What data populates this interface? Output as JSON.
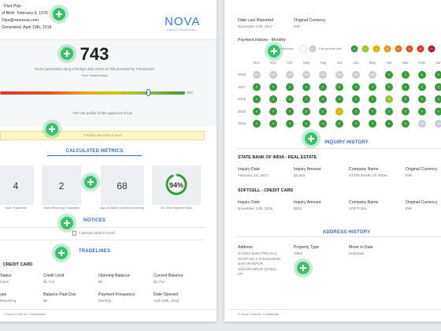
{
  "applicant": {
    "name": ": Diya Pujo",
    "birth": "of Birth: February 6, 1976",
    "email": "Diya@neonova.com",
    "generated": "Generated: April 19th, 2018"
  },
  "logo": {
    "name": "NOVA",
    "tagline": "CREDIT PASSPORT"
  },
  "score": {
    "value": "743",
    "description": "Score generated using a foreign data score of 756 provided by TransUnion",
    "details_link": "More details below",
    "max": "850",
    "risk": "The risk profile of this applicant is low"
  },
  "public_records": "1 Public Records Found",
  "metrics": {
    "title": "CALCULATED METRICS",
    "cards": [
      {
        "value": "4",
        "caption": "Open Tradelines"
      },
      {
        "value": "2",
        "caption": "Open Revolving Tradelines"
      },
      {
        "value": "68",
        "caption": "Age of Oldest Tradeline (months)"
      },
      {
        "value": 94,
        "label": "94%",
        "caption": "On-Time Payment Ratio"
      }
    ]
  },
  "notices": {
    "title": "NOTICES",
    "text": "1 Bureau Notice found"
  },
  "tradelines": {
    "title": "TRADELINES",
    "account": "CREDIT CARD",
    "fields": [
      {
        "label": "Status",
        "value": "Open"
      },
      {
        "label": "Credit Limit",
        "value": "$1,714"
      },
      {
        "label": "Opening Balance",
        "value": "$0"
      },
      {
        "label": "Current Balance",
        "value": "$1,714"
      },
      {
        "label": "ype",
        "value": "Revolving"
      },
      {
        "label": "Balance Past Due",
        "value": "$0"
      },
      {
        "label": "Payment Frequency",
        "value": "Monthly"
      },
      {
        "label": "Date Opened",
        "value": "April 20th, 2013"
      }
    ]
  },
  "footer": "© Nova Credit Inc. Confidential",
  "report": {
    "date_label": "Date Last Reported",
    "date": "November 17th, 2017",
    "currency_label": "Original Currency",
    "currency": "INR"
  },
  "payment_history": {
    "title": "Payment History - Monthly",
    "legend": {
      "unknown": {
        "label": "Unknown",
        "color": "#ffffff"
      },
      "na": {
        "label": "N/A",
        "color": "#c9ccd1"
      },
      "late": "Pay periods late",
      "levels": [
        {
          "label": "0",
          "color": "#3b9a41"
        },
        {
          "label": "1",
          "color": "#9cc23a"
        },
        {
          "label": "2",
          "color": "#d8b400"
        },
        {
          "label": "3",
          "color": "#e89a1e"
        },
        {
          "label": "4",
          "color": "#e8761e"
        },
        {
          "label": "5",
          "color": "#e2502a"
        },
        {
          "label": "6",
          "color": "#d8382a"
        },
        {
          "label": "7+",
          "color": "#b0201e"
        }
      ]
    },
    "months": [
      "Dec",
      "Nov",
      "Oct",
      "Sep",
      "Aug",
      "Jul",
      "Jun",
      "May",
      "Apr",
      "Mar",
      "Feb",
      "Jan"
    ],
    "years": [
      "2018",
      "2017",
      "2016",
      "2015",
      "2014"
    ],
    "grid": [
      [
        "N/A",
        "N/A",
        "N/A",
        "N/A",
        "N/A",
        "N/A",
        "N/A",
        "N/A",
        "0",
        "0",
        "0",
        "0"
      ],
      [
        "0",
        "0",
        "0",
        "0",
        "0",
        "0",
        "0",
        "0",
        "0",
        "0",
        "0",
        "0"
      ],
      [
        "0",
        "0",
        "0",
        "0",
        "0",
        "0",
        "0",
        "0",
        "1",
        "0",
        "0",
        "0"
      ],
      [
        "0",
        "0",
        "0",
        "0",
        "0",
        "2",
        "0",
        "0",
        "0",
        "0",
        "0",
        "0"
      ],
      [
        "0",
        "0",
        "0",
        "0",
        "0",
        "0",
        "0",
        "0",
        "0",
        "0",
        "N/A",
        "N/A"
      ]
    ]
  },
  "inquiries": {
    "title": "INQUIRY HISTORY",
    "items": [
      {
        "name": "STATE BANK OF INDIA - REAL ESTATE",
        "fields": [
          {
            "label": "Inquiry Date",
            "value": "February 1st, 2017"
          },
          {
            "label": "Inquiry Amount",
            "value": "$2,284"
          },
          {
            "label": "Company Name",
            "value": "STATE BANK OF INDIA"
          },
          {
            "label": "Original Currency",
            "value": "INR"
          }
        ]
      },
      {
        "name": "SOFTCELL - CREDIT CARD",
        "fields": [
          {
            "label": "Inquiry Date",
            "value": "November 12th, 2016"
          },
          {
            "label": "Inquiry Amount",
            "value": "$152"
          },
          {
            "label": "Company Name",
            "value": "SOFTCELL"
          },
          {
            "label": "Original Currency",
            "value": "INR"
          }
        ]
      }
    ]
  },
  "address": {
    "title": "ADDRESS HISTORY",
    "address_label": "Address",
    "lines": [
      "GANGA ELECTRICALS,",
      "SHOP NO 3 JAN MANDIR",
      "SAHARANPUR",
      "SAHARANPUR 247001",
      "UP"
    ],
    "property_label": "Property Type",
    "property": "Other",
    "move_label": "Move In Date",
    "move": "Unknown"
  },
  "footer_right": "© Nova Credit Inc. Confidential"
}
